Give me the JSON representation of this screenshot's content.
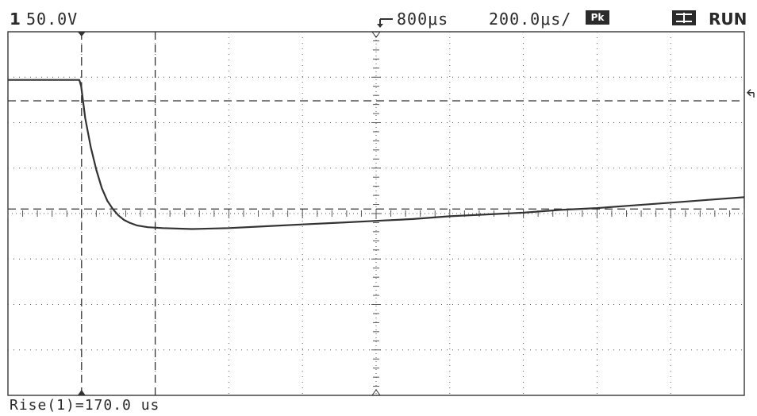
{
  "header": {
    "channel_number": "1",
    "channel_scale": "50.0V",
    "trigger_position": "800μs",
    "timebase": "200.0μs/",
    "acquisition_mode": "Pk",
    "run_state": "RUN"
  },
  "measurement": {
    "readout": "Rise(1)=170.0 us"
  },
  "colors": {
    "background": "#ffffff",
    "trace": "#333333",
    "grid": "#555555",
    "frame": "#444444"
  },
  "chart_data": {
    "type": "line",
    "title": "",
    "xlabel": "",
    "ylabel": "",
    "x_unit": "us",
    "y_unit": "V",
    "x_per_div": 200,
    "y_per_div": 50,
    "x_divisions": 10,
    "y_divisions": 8,
    "xlim": [
      -1000,
      1000
    ],
    "ylim": [
      -200,
      200
    ],
    "grid": true,
    "series": [
      {
        "points": [
          [
            -1000,
            147
          ],
          [
            -806,
            147
          ],
          [
            -801,
            140
          ],
          [
            -790,
            105
          ],
          [
            -775,
            73
          ],
          [
            -760,
            48
          ],
          [
            -745,
            28
          ],
          [
            -730,
            14
          ],
          [
            -715,
            5
          ],
          [
            -700,
            -2
          ],
          [
            -685,
            -7
          ],
          [
            -670,
            -10
          ],
          [
            -650,
            -13
          ],
          [
            -620,
            -15
          ],
          [
            -580,
            -16
          ],
          [
            -500,
            -17
          ],
          [
            -400,
            -16
          ],
          [
            -300,
            -14
          ],
          [
            -200,
            -12
          ],
          [
            -100,
            -10
          ],
          [
            0,
            -8
          ],
          [
            100,
            -6
          ],
          [
            200,
            -3
          ],
          [
            300,
            -1
          ],
          [
            400,
            1
          ],
          [
            500,
            4
          ],
          [
            600,
            6
          ],
          [
            700,
            9
          ],
          [
            800,
            12
          ],
          [
            900,
            15
          ],
          [
            1000,
            18
          ]
        ]
      }
    ],
    "cursors": {
      "horizontal": [
        124,
        5
      ],
      "vertical": [
        -800,
        -600
      ]
    },
    "trigger_level": 133
  }
}
